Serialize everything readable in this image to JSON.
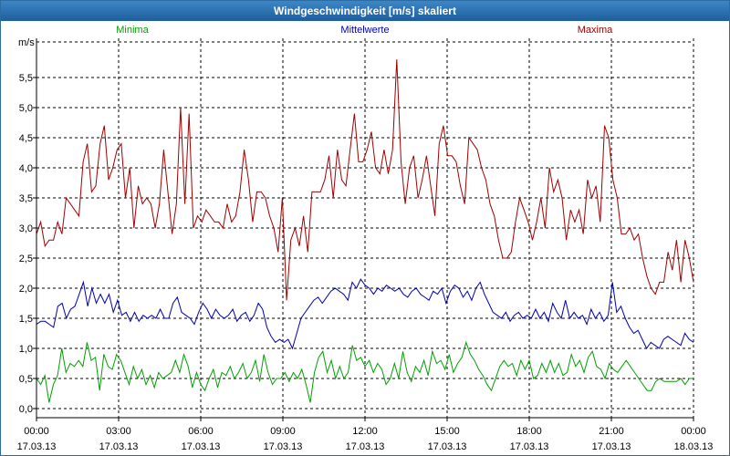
{
  "window": {
    "title": "Windgeschwindigkeit [m/s] skaliert"
  },
  "colors": {
    "title_bar": "#2b6ca3",
    "minima": "#00a000",
    "mittelwerte": "#0000b0",
    "maxima": "#a00000",
    "grid": "#000000"
  },
  "chart_data": {
    "type": "line",
    "title": "Windgeschwindigkeit [m/s] skaliert",
    "ylabel": "m/s",
    "xlabel": "",
    "ylim": [
      -0.1,
      6.1
    ],
    "yticks": [
      "0,0",
      "0,5",
      "1,0",
      "1,5",
      "2,0",
      "2,5",
      "3,0",
      "3,5",
      "4,0",
      "4,5",
      "5,0",
      "5,5"
    ],
    "xticks": [
      {
        "time": "00:00",
        "date": "17.03.13"
      },
      {
        "time": "03:00",
        "date": "17.03.13"
      },
      {
        "time": "06:00",
        "date": "17.03.13"
      },
      {
        "time": "09:00",
        "date": "17.03.13"
      },
      {
        "time": "12:00",
        "date": "17.03.13"
      },
      {
        "time": "15:00",
        "date": "17.03.13"
      },
      {
        "time": "18:00",
        "date": "17.03.13"
      },
      {
        "time": "21:00",
        "date": "17.03.13"
      },
      {
        "time": "00:00",
        "date": "18.03.13"
      }
    ],
    "grid": true,
    "legend_position": "top",
    "series": [
      {
        "name": "Maxima",
        "values": [
          2.9,
          3.1,
          2.7,
          2.8,
          2.8,
          3.1,
          2.9,
          3.5,
          3.4,
          3.3,
          3.2,
          4.1,
          4.4,
          3.6,
          3.7,
          4.4,
          4.7,
          3.8,
          4.0,
          4.3,
          4.4,
          3.5,
          4.0,
          3.0,
          3.7,
          3.4,
          3.5,
          3.4,
          3.0,
          3.4,
          4.3,
          3.6,
          2.9,
          3.4,
          5.0,
          3.4,
          4.9,
          3.0,
          3.2,
          3.1,
          3.3,
          3.2,
          3.1,
          3.1,
          3.0,
          3.4,
          3.1,
          3.2,
          3.6,
          4.3,
          3.8,
          3.1,
          3.6,
          3.6,
          3.5,
          3.2,
          3.0,
          2.6,
          3.5,
          1.8,
          2.8,
          3.0,
          2.7,
          3.2,
          2.6,
          3.6,
          3.6,
          3.6,
          3.8,
          4.2,
          3.5,
          4.3,
          3.8,
          3.7,
          4.3,
          4.9,
          4.1,
          4.1,
          4.3,
          4.6,
          4.0,
          3.9,
          4.3,
          3.9,
          4.3,
          5.8,
          4.1,
          3.4,
          4.0,
          4.2,
          3.5,
          3.8,
          4.2,
          3.7,
          3.2,
          4.4,
          4.7,
          4.2,
          4.2,
          4.1,
          3.7,
          3.4,
          4.5,
          4.4,
          4.3,
          4.0,
          3.8,
          3.4,
          3.2,
          2.8,
          2.5,
          2.5,
          2.6,
          3.1,
          3.5,
          3.3,
          3.1,
          2.8,
          3.1,
          3.5,
          3.0,
          4.0,
          3.6,
          3.8,
          3.5,
          2.8,
          3.3,
          3.1,
          3.3,
          2.9,
          3.8,
          3.5,
          3.7,
          3.1,
          4.7,
          4.5,
          3.8,
          3.5,
          2.9,
          2.9,
          3.0,
          2.8,
          2.9,
          2.5,
          2.2,
          2.0,
          1.9,
          2.1,
          2.1,
          2.6,
          2.3,
          2.8,
          2.1,
          2.8,
          2.5,
          2.1
        ],
        "color": "#a00000"
      },
      {
        "name": "Mittelwerte",
        "values": [
          1.4,
          1.45,
          1.45,
          1.4,
          1.35,
          1.7,
          1.75,
          1.5,
          1.65,
          1.7,
          1.9,
          2.1,
          1.7,
          2.0,
          1.75,
          1.9,
          1.75,
          1.9,
          1.6,
          1.8,
          1.55,
          1.6,
          1.45,
          1.6,
          1.45,
          1.55,
          1.5,
          1.55,
          1.5,
          1.65,
          1.5,
          1.5,
          1.75,
          1.85,
          1.6,
          1.55,
          1.5,
          1.4,
          1.6,
          1.75,
          1.65,
          1.5,
          1.65,
          1.55,
          1.5,
          1.55,
          1.65,
          1.45,
          1.55,
          1.6,
          1.45,
          1.55,
          1.75,
          1.65,
          1.35,
          1.2,
          1.1,
          1.15,
          1.1,
          1.15,
          1.0,
          1.25,
          1.5,
          1.6,
          1.7,
          1.8,
          1.85,
          1.75,
          1.85,
          1.95,
          2.0,
          1.95,
          1.9,
          1.8,
          2.1,
          2.0,
          2.15,
          2.05,
          2.0,
          1.9,
          2.0,
          1.95,
          2.05,
          2.0,
          1.95,
          2.0,
          1.9,
          1.85,
          1.95,
          2.0,
          1.9,
          1.85,
          1.8,
          1.95,
          1.9,
          2.0,
          1.75,
          1.95,
          2.05,
          2.0,
          1.85,
          1.95,
          1.8,
          2.0,
          2.1,
          1.9,
          1.75,
          1.6,
          1.55,
          1.5,
          1.6,
          1.45,
          1.55,
          1.6,
          1.5,
          1.55,
          1.5,
          1.65,
          1.5,
          1.6,
          1.45,
          1.75,
          1.6,
          1.5,
          1.8,
          1.5,
          1.6,
          1.5,
          1.55,
          1.4,
          1.65,
          1.5,
          1.6,
          1.45,
          1.55,
          2.1,
          1.6,
          1.7,
          1.5,
          1.35,
          1.25,
          1.3,
          1.15,
          1.0,
          1.1,
          1.05,
          1.0,
          1.15,
          1.2,
          1.15,
          1.1,
          1.05,
          1.25,
          1.15,
          1.1
        ],
        "color": "#0000b0"
      },
      {
        "name": "Minima",
        "values": [
          0.5,
          0.4,
          0.55,
          0.1,
          0.4,
          0.55,
          1.0,
          0.6,
          0.75,
          0.7,
          0.8,
          0.7,
          1.1,
          0.8,
          0.85,
          0.3,
          0.9,
          0.7,
          0.65,
          0.9,
          0.8,
          0.6,
          0.4,
          0.7,
          0.5,
          0.65,
          0.4,
          0.55,
          0.35,
          0.6,
          0.5,
          0.55,
          0.6,
          0.8,
          0.6,
          0.9,
          0.7,
          0.35,
          0.6,
          0.4,
          0.3,
          0.5,
          0.65,
          0.35,
          0.6,
          0.55,
          0.7,
          0.5,
          0.6,
          0.75,
          0.5,
          0.6,
          0.8,
          0.45,
          0.9,
          0.6,
          0.4,
          0.5,
          0.5,
          0.6,
          0.45,
          0.6,
          0.5,
          0.65,
          0.4,
          0.1,
          0.6,
          0.85,
          0.95,
          0.6,
          0.8,
          0.5,
          0.7,
          0.5,
          0.6,
          1.05,
          0.8,
          0.85,
          0.7,
          0.8,
          0.6,
          0.75,
          0.65,
          0.4,
          0.5,
          0.75,
          0.5,
          0.95,
          0.6,
          0.45,
          0.7,
          0.6,
          0.8,
          0.55,
          0.95,
          0.75,
          0.8,
          0.65,
          0.9,
          0.6,
          0.75,
          0.85,
          1.1,
          0.9,
          0.8,
          0.65,
          0.55,
          0.4,
          0.3,
          0.5,
          0.7,
          0.8,
          0.7,
          0.75,
          0.55,
          0.8,
          0.65,
          0.8,
          0.5,
          0.55,
          0.75,
          0.6,
          0.8,
          0.6,
          0.75,
          0.55,
          0.6,
          0.9,
          0.7,
          0.8,
          0.6,
          0.85,
          0.95,
          0.7,
          0.65,
          0.5,
          0.75,
          0.65,
          0.6,
          0.7,
          0.8,
          0.7,
          0.6,
          0.5,
          0.4,
          0.3,
          0.3,
          0.45,
          0.5,
          0.45,
          0.45,
          0.45,
          0.45,
          0.5,
          0.4,
          0.5,
          0.5
        ],
        "color": "#00a000"
      }
    ]
  }
}
